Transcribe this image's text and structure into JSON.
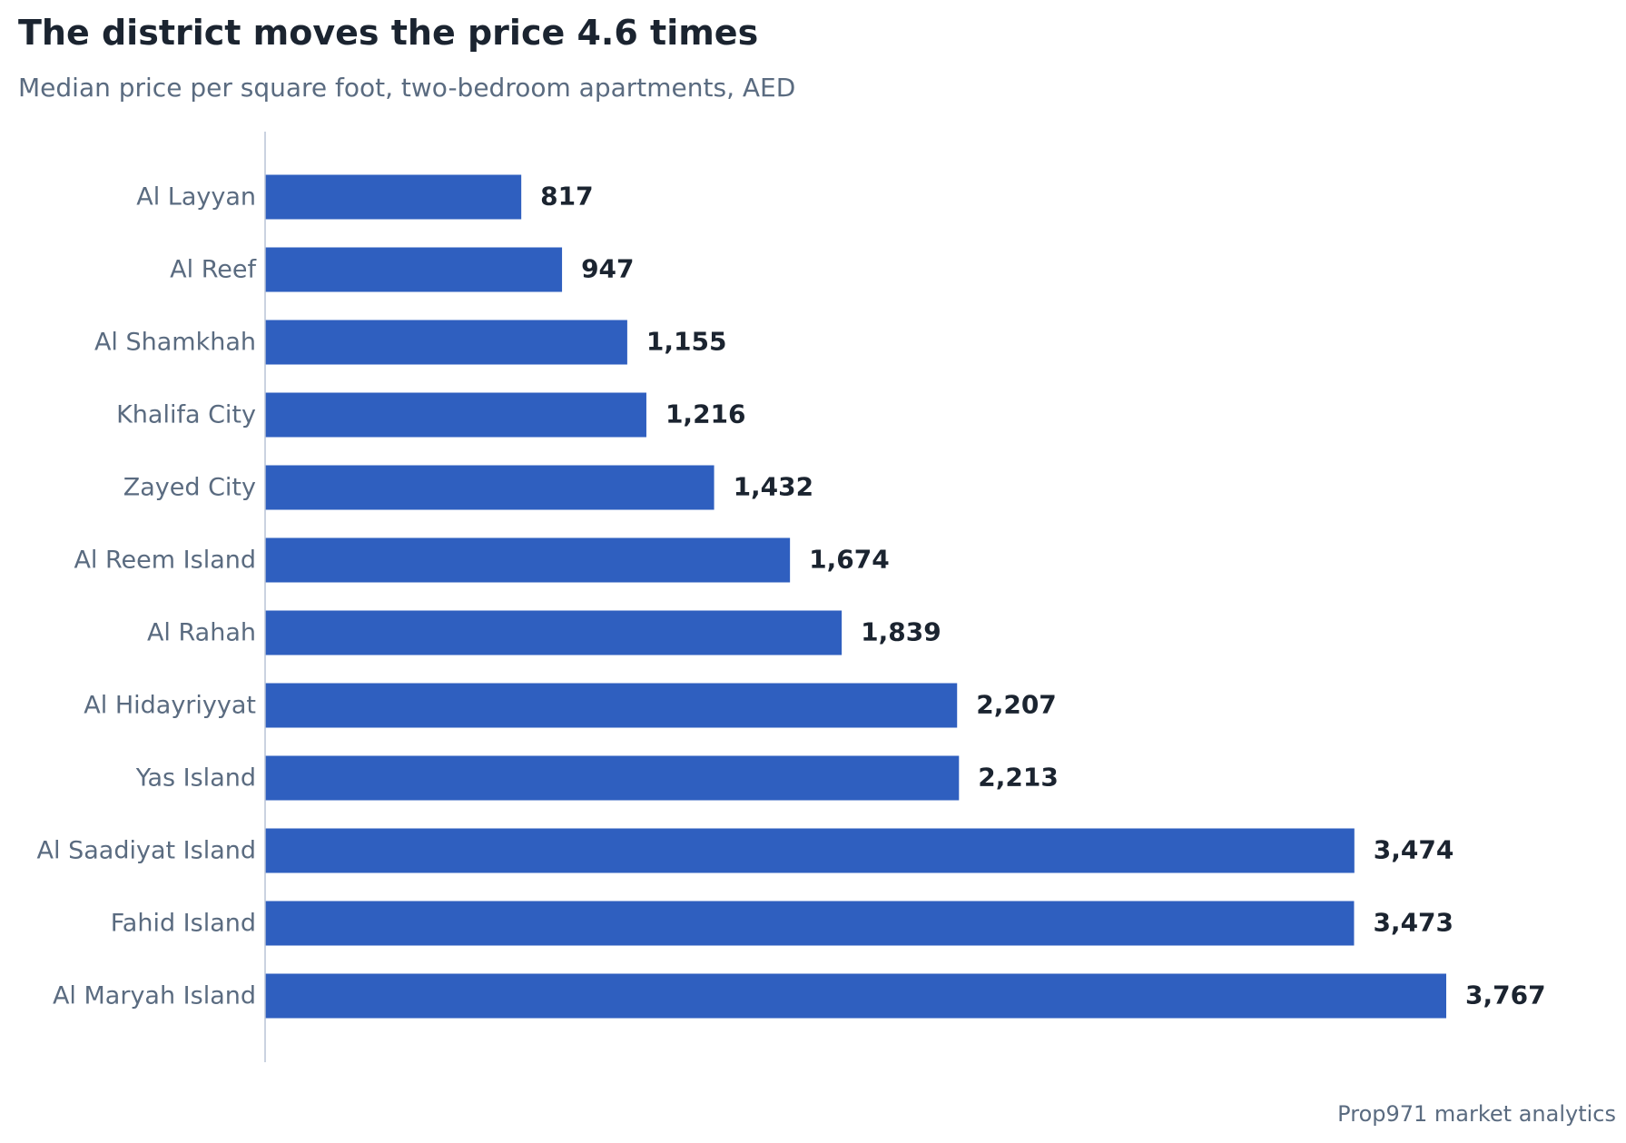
{
  "chart_data": {
    "type": "bar",
    "orientation": "horizontal",
    "title": "The district moves the price 4.6 times",
    "subtitle": "Median price per square foot, two-bedroom apartments, AED",
    "source": "Prop971 market analytics",
    "categories": [
      "Al Layyan",
      "Al Reef",
      "Al Shamkhah",
      "Khalifa City",
      "Zayed City",
      "Al Reem Island",
      "Al Rahah",
      "Al Hidayriyyat",
      "Yas Island",
      "Al Saadiyat Island",
      "Fahid Island",
      "Al Maryah Island"
    ],
    "values": [
      817,
      947,
      1155,
      1216,
      1432,
      1674,
      1839,
      2207,
      2213,
      3474,
      3473,
      3767
    ],
    "value_labels": [
      "817",
      "947",
      "1,155",
      "1,216",
      "1,432",
      "1,674",
      "1,839",
      "2,207",
      "2,213",
      "3,474",
      "3,473",
      "3,767"
    ],
    "xlim": [
      0,
      3767
    ],
    "grid": false,
    "legend": false,
    "colors": {
      "bar": "#2f5fbf",
      "axis": "#b8c4d6",
      "category_label": "#5a6b80",
      "value_label": "#1b2430",
      "title": "#1b2430",
      "subtitle": "#5a6b80"
    }
  }
}
